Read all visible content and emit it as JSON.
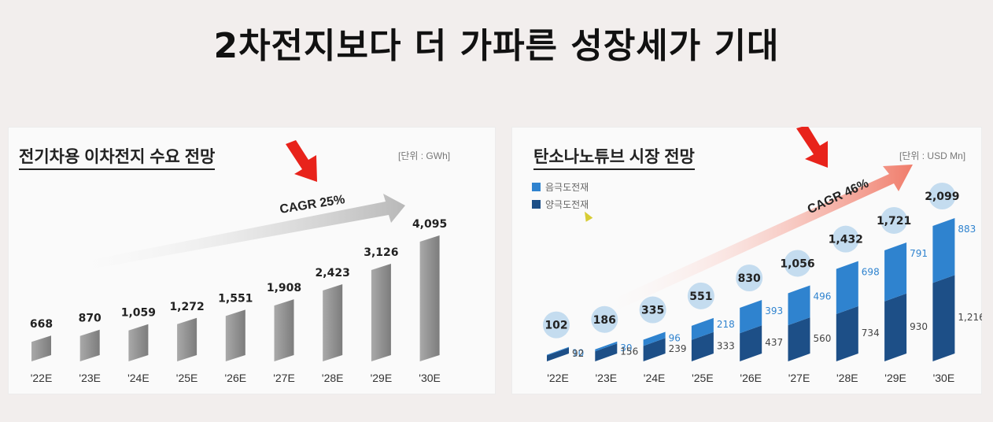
{
  "slide": {
    "title": "2차전지보다 더 가파른 성장세가 기대"
  },
  "chart_data": [
    {
      "type": "bar",
      "title": "전기차용 이차전지 수요 전망",
      "unit": "[단위 : GWh]",
      "categories": [
        "'22E",
        "'23E",
        "'24E",
        "'25E",
        "'26E",
        "'27E",
        "'28E",
        "'29E",
        "'30E"
      ],
      "values": [
        668,
        870,
        1059,
        1272,
        1551,
        1908,
        2423,
        3126,
        4095
      ],
      "value_labels": [
        "668",
        "870",
        "1,059",
        "1,272",
        "1,551",
        "1,908",
        "2,423",
        "3,126",
        "4,095"
      ],
      "annotation": "CAGR 25%",
      "colors": {
        "bar": "#8f8f8f",
        "arrow": "#b8b8b8",
        "marker": "#e8231b"
      }
    },
    {
      "type": "bar",
      "stacked": true,
      "title": "탄소나노튜브 시장 전망",
      "unit": "[단위 : USD Mn]",
      "categories": [
        "'22E",
        "'23E",
        "'24E",
        "'25E",
        "'26E",
        "'27E",
        "'28E",
        "'29E",
        "'30E"
      ],
      "series": [
        {
          "name": "양극도전재",
          "values": [
            92,
            156,
            239,
            333,
            437,
            560,
            734,
            930,
            1216
          ],
          "labels": [
            "92",
            "156",
            "239",
            "333",
            "437",
            "560",
            "734",
            "930",
            "1,216"
          ]
        },
        {
          "name": "음극도전재",
          "values": [
            10,
            30,
            96,
            218,
            393,
            496,
            698,
            791,
            883
          ],
          "labels": [
            "10",
            "30",
            "96",
            "218",
            "393",
            "496",
            "698",
            "791",
            "883"
          ]
        }
      ],
      "totals": [
        "102",
        "186",
        "335",
        "551",
        "830",
        "1,056",
        "1,432",
        "1,721",
        "2,099"
      ],
      "annotation": "CAGR 46%",
      "colors": {
        "cathode": "#1d4f87",
        "anode": "#2f83cf",
        "circle": "#c4dcef",
        "arrow": "#f07c6a",
        "marker": "#e8231b"
      }
    }
  ]
}
